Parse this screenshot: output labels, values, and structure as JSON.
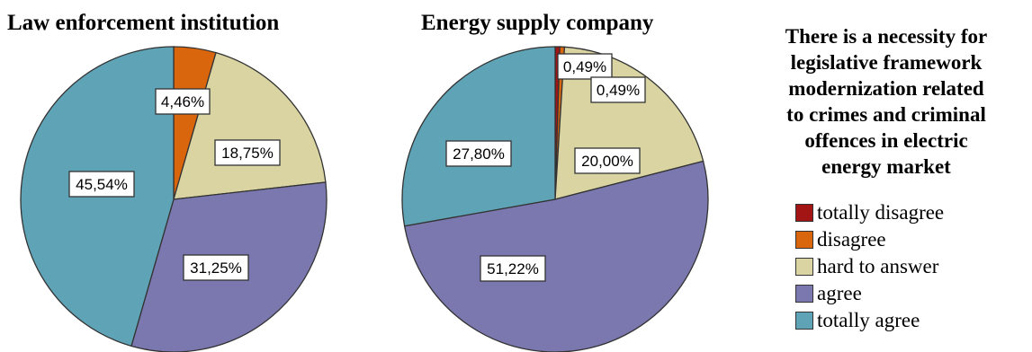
{
  "chart_data": [
    {
      "type": "pie",
      "title": "Law enforcement institution",
      "slices": [
        {
          "label": "totally disagree",
          "value": 0,
          "color": "#a31515"
        },
        {
          "label": "disagree",
          "value": 4.46,
          "display": "4,46%",
          "color": "#d9650d"
        },
        {
          "label": "hard to answer",
          "value": 18.75,
          "display": "18,75%",
          "color": "#d9d4a2"
        },
        {
          "label": "agree",
          "value": 31.25,
          "display": "31,25%",
          "color": "#7b78b0"
        },
        {
          "label": "totally agree",
          "value": 45.54,
          "display": "45,54%",
          "color": "#5fa3b6"
        }
      ]
    },
    {
      "type": "pie",
      "title": "Energy supply company",
      "slices": [
        {
          "label": "totally disagree",
          "value": 0.49,
          "display": "0,49%",
          "color": "#a31515"
        },
        {
          "label": "disagree",
          "value": 0.49,
          "display": "0,49%",
          "color": "#d9650d"
        },
        {
          "label": "hard to answer",
          "value": 20.0,
          "display": "20,00%",
          "color": "#d9d4a2"
        },
        {
          "label": "agree",
          "value": 51.22,
          "display": "51,22%",
          "color": "#7b78b0"
        },
        {
          "label": "totally agree",
          "value": 27.8,
          "display": "27,80%",
          "color": "#5fa3b6"
        }
      ]
    }
  ],
  "legend": {
    "title_lines": [
      "There is a necessity for",
      "legislative framework",
      "modernization related",
      "to crimes and criminal",
      "offences in electric",
      "energy market"
    ],
    "items": [
      {
        "label": "totally disagree",
        "color": "#a31515"
      },
      {
        "label": "disagree",
        "color": "#d9650d"
      },
      {
        "label": "hard to answer",
        "color": "#d9d4a2"
      },
      {
        "label": "agree",
        "color": "#7b78b0"
      },
      {
        "label": "totally agree",
        "color": "#5fa3b6"
      }
    ]
  }
}
